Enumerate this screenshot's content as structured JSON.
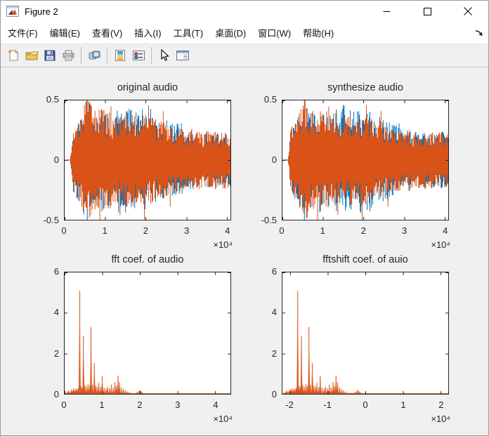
{
  "window": {
    "title": "Figure 2",
    "icon": "matlab-figure-icon",
    "controls": [
      {
        "name": "minimize-button",
        "icon": "minimize-icon"
      },
      {
        "name": "maximize-button",
        "icon": "maximize-icon"
      },
      {
        "name": "close-button",
        "icon": "close-icon"
      }
    ]
  },
  "menu": {
    "items": [
      {
        "label": "文件(F)"
      },
      {
        "label": "编辑(E)"
      },
      {
        "label": "查看(V)"
      },
      {
        "label": "插入(I)"
      },
      {
        "label": "工具(T)"
      },
      {
        "label": "桌面(D)"
      },
      {
        "label": "窗口(W)"
      },
      {
        "label": "帮助(H)"
      }
    ],
    "dock_icon": "dock-figure-arrow-icon"
  },
  "toolbar": {
    "buttons": [
      {
        "icon": "new-figure-icon"
      },
      {
        "icon": "open-file-icon"
      },
      {
        "icon": "save-figure-icon"
      },
      {
        "icon": "print-figure-icon"
      },
      {
        "icon": "link-plot-icon"
      },
      {
        "icon": "insert-colorbar-icon"
      },
      {
        "icon": "insert-legend-icon"
      },
      {
        "icon": "edit-plot-cursor-icon"
      },
      {
        "icon": "property-editor-icon"
      }
    ]
  },
  "colors": {
    "series_blue": "#0072BD",
    "series_orange": "#D95319",
    "axis": "#262626",
    "figure_background": "#f0f0f0",
    "plot_background": "#ffffff"
  },
  "chart_data": [
    {
      "type": "line",
      "title": "original audio",
      "xlim": [
        0,
        4.09
      ],
      "ylim": [
        -0.5,
        0.5
      ],
      "xticks": [
        0,
        1,
        2,
        3,
        4
      ],
      "xtick_labels": [
        "0",
        "1",
        "2",
        "3",
        "4"
      ],
      "yticks": [
        -0.5,
        0,
        0.5
      ],
      "ytick_labels": [
        "-0.5",
        "0",
        "0.5"
      ],
      "x_exponent": "×10⁴",
      "series_colors": [
        "#0072BD",
        "#D95319"
      ],
      "seed": 123456789,
      "envelope": [
        [
          0.0,
          0.004
        ],
        [
          0.13,
          0.005
        ],
        [
          0.16,
          0.06
        ],
        [
          0.2,
          0.24
        ],
        [
          0.28,
          0.3
        ],
        [
          0.38,
          0.34
        ],
        [
          0.48,
          0.44
        ],
        [
          0.56,
          0.5
        ],
        [
          0.64,
          0.45
        ],
        [
          0.72,
          0.41
        ],
        [
          0.82,
          0.38
        ],
        [
          0.92,
          0.42
        ],
        [
          1.02,
          0.36
        ],
        [
          1.12,
          0.39
        ],
        [
          1.22,
          0.33
        ],
        [
          1.32,
          0.37
        ],
        [
          1.42,
          0.32
        ],
        [
          1.52,
          0.38
        ],
        [
          1.62,
          0.34
        ],
        [
          1.72,
          0.36
        ],
        [
          1.82,
          0.31
        ],
        [
          1.92,
          0.37
        ],
        [
          2.02,
          0.34
        ],
        [
          2.12,
          0.36
        ],
        [
          2.22,
          0.31
        ],
        [
          2.32,
          0.28
        ],
        [
          2.42,
          0.32
        ],
        [
          2.52,
          0.28
        ],
        [
          2.62,
          0.26
        ],
        [
          2.72,
          0.24
        ],
        [
          2.82,
          0.27
        ],
        [
          2.92,
          0.23
        ],
        [
          3.02,
          0.21
        ],
        [
          3.12,
          0.25
        ],
        [
          3.22,
          0.21
        ],
        [
          3.32,
          0.24
        ],
        [
          3.42,
          0.2
        ],
        [
          3.52,
          0.23
        ],
        [
          3.62,
          0.21
        ],
        [
          3.72,
          0.23
        ],
        [
          3.82,
          0.2
        ],
        [
          3.92,
          0.23
        ],
        [
          4.09,
          0.21
        ]
      ],
      "neg_spikes": [
        [
          0.86,
          0.52
        ],
        [
          1.36,
          0.46
        ],
        [
          1.96,
          0.5
        ],
        [
          2.6,
          0.39
        ]
      ],
      "pos_spikes": [
        [
          0.55,
          0.51
        ],
        [
          1.14,
          0.45
        ],
        [
          2.06,
          0.46
        ],
        [
          2.43,
          0.41
        ]
      ]
    },
    {
      "type": "line",
      "title": "synthesize audio",
      "xlim": [
        0,
        4.09
      ],
      "ylim": [
        -0.5,
        0.5
      ],
      "xticks": [
        0,
        1,
        2,
        3,
        4
      ],
      "xtick_labels": [
        "0",
        "1",
        "2",
        "3",
        "4"
      ],
      "yticks": [
        -0.5,
        0,
        0.5
      ],
      "ytick_labels": [
        "-0.5",
        "0",
        "0.5"
      ],
      "x_exponent": "×10⁴",
      "series_colors": [
        "#0072BD",
        "#D95319"
      ],
      "seed": 987654321,
      "envelope": [
        [
          0.0,
          0.004
        ],
        [
          0.13,
          0.005
        ],
        [
          0.16,
          0.06
        ],
        [
          0.2,
          0.24
        ],
        [
          0.28,
          0.3
        ],
        [
          0.38,
          0.34
        ],
        [
          0.48,
          0.44
        ],
        [
          0.56,
          0.5
        ],
        [
          0.64,
          0.45
        ],
        [
          0.72,
          0.41
        ],
        [
          0.82,
          0.38
        ],
        [
          0.92,
          0.42
        ],
        [
          1.02,
          0.36
        ],
        [
          1.12,
          0.39
        ],
        [
          1.22,
          0.33
        ],
        [
          1.32,
          0.37
        ],
        [
          1.42,
          0.32
        ],
        [
          1.52,
          0.38
        ],
        [
          1.62,
          0.34
        ],
        [
          1.72,
          0.36
        ],
        [
          1.82,
          0.31
        ],
        [
          1.92,
          0.37
        ],
        [
          2.02,
          0.34
        ],
        [
          2.12,
          0.36
        ],
        [
          2.22,
          0.31
        ],
        [
          2.32,
          0.28
        ],
        [
          2.42,
          0.32
        ],
        [
          2.52,
          0.28
        ],
        [
          2.62,
          0.26
        ],
        [
          2.72,
          0.24
        ],
        [
          2.82,
          0.27
        ],
        [
          2.92,
          0.23
        ],
        [
          3.02,
          0.21
        ],
        [
          3.12,
          0.25
        ],
        [
          3.22,
          0.21
        ],
        [
          3.32,
          0.24
        ],
        [
          3.42,
          0.2
        ],
        [
          3.52,
          0.23
        ],
        [
          3.62,
          0.21
        ],
        [
          3.72,
          0.23
        ],
        [
          3.82,
          0.2
        ],
        [
          3.92,
          0.23
        ],
        [
          4.09,
          0.21
        ]
      ],
      "neg_spikes": [
        [
          0.86,
          0.52
        ],
        [
          1.36,
          0.46
        ],
        [
          1.96,
          0.5
        ],
        [
          2.6,
          0.39
        ]
      ],
      "pos_spikes": [
        [
          0.55,
          0.51
        ],
        [
          1.14,
          0.45
        ],
        [
          2.06,
          0.46
        ],
        [
          2.43,
          0.41
        ]
      ]
    },
    {
      "type": "line",
      "title": "fft coef. of audio",
      "xlim": [
        0,
        4.41
      ],
      "ylim": [
        0,
        6
      ],
      "xticks": [
        0,
        1,
        2,
        3,
        4
      ],
      "xtick_labels": [
        "0",
        "1",
        "2",
        "3",
        "4"
      ],
      "yticks": [
        0,
        2,
        4,
        6
      ],
      "ytick_labels": [
        "0",
        "2",
        "4",
        "6"
      ],
      "x_exponent": "×10⁴",
      "series_colors": [
        "#D95319"
      ],
      "seed": 24681357,
      "noise_range": [
        0,
        2.1
      ],
      "spikes": [
        [
          0.07,
          0.1
        ],
        [
          0.1,
          0.16
        ],
        [
          0.14,
          0.12
        ],
        [
          0.18,
          0.22
        ],
        [
          0.21,
          0.16
        ],
        [
          0.24,
          0.28
        ],
        [
          0.27,
          0.18
        ],
        [
          0.3,
          0.26
        ],
        [
          0.33,
          0.22
        ],
        [
          0.36,
          0.3
        ],
        [
          0.4,
          5.1
        ],
        [
          0.44,
          0.38
        ],
        [
          0.47,
          0.3
        ],
        [
          0.5,
          2.85
        ],
        [
          0.54,
          0.42
        ],
        [
          0.58,
          0.35
        ],
        [
          0.62,
          0.48
        ],
        [
          0.66,
          0.4
        ],
        [
          0.7,
          3.3
        ],
        [
          0.74,
          0.45
        ],
        [
          0.79,
          1.52
        ],
        [
          0.83,
          0.4
        ],
        [
          0.87,
          0.35
        ],
        [
          0.91,
          0.55
        ],
        [
          0.96,
          0.35
        ],
        [
          1.0,
          0.88
        ],
        [
          1.05,
          0.3
        ],
        [
          1.1,
          0.26
        ],
        [
          1.14,
          0.36
        ],
        [
          1.19,
          0.28
        ],
        [
          1.24,
          0.46
        ],
        [
          1.29,
          0.32
        ],
        [
          1.34,
          0.58
        ],
        [
          1.38,
          0.4
        ],
        [
          1.42,
          0.9
        ],
        [
          1.46,
          0.58
        ],
        [
          1.51,
          0.32
        ],
        [
          1.56,
          0.24
        ],
        [
          1.61,
          0.18
        ],
        [
          1.66,
          0.12
        ],
        [
          1.72,
          0.08
        ],
        [
          1.8,
          0.05
        ],
        [
          1.94,
          0.12
        ],
        [
          1.99,
          0.2
        ],
        [
          2.03,
          0.14
        ],
        [
          2.07,
          0.07
        ]
      ]
    },
    {
      "type": "line",
      "title": "fftshift coef. of auio",
      "xlim": [
        -2.205,
        2.205
      ],
      "ylim": [
        0,
        6
      ],
      "xticks": [
        -2,
        -1,
        0,
        1,
        2
      ],
      "xtick_labels": [
        "-2",
        "-1",
        "0",
        "1",
        "2"
      ],
      "yticks": [
        0,
        2,
        4,
        6
      ],
      "ytick_labels": [
        "0",
        "2",
        "4",
        "6"
      ],
      "x_exponent": "×10⁴",
      "series_colors": [
        "#D95319"
      ],
      "seed": 13572468,
      "noise_range": [
        -2.205,
        -0.1
      ],
      "spikes": [
        [
          -2.13,
          0.1
        ],
        [
          -2.1,
          0.16
        ],
        [
          -2.06,
          0.12
        ],
        [
          -2.02,
          0.22
        ],
        [
          -1.99,
          0.16
        ],
        [
          -1.96,
          0.28
        ],
        [
          -1.93,
          0.18
        ],
        [
          -1.9,
          0.26
        ],
        [
          -1.87,
          0.22
        ],
        [
          -1.84,
          0.3
        ],
        [
          -1.8,
          5.1
        ],
        [
          -1.76,
          0.38
        ],
        [
          -1.73,
          0.3
        ],
        [
          -1.7,
          2.85
        ],
        [
          -1.66,
          0.42
        ],
        [
          -1.62,
          0.35
        ],
        [
          -1.58,
          0.48
        ],
        [
          -1.54,
          0.4
        ],
        [
          -1.5,
          3.3
        ],
        [
          -1.46,
          0.45
        ],
        [
          -1.41,
          1.52
        ],
        [
          -1.37,
          0.4
        ],
        [
          -1.33,
          0.35
        ],
        [
          -1.29,
          0.55
        ],
        [
          -1.24,
          0.35
        ],
        [
          -1.2,
          0.88
        ],
        [
          -1.15,
          0.3
        ],
        [
          -1.1,
          0.26
        ],
        [
          -1.06,
          0.36
        ],
        [
          -1.01,
          0.28
        ],
        [
          -0.96,
          0.46
        ],
        [
          -0.91,
          0.32
        ],
        [
          -0.86,
          0.58
        ],
        [
          -0.82,
          0.4
        ],
        [
          -0.78,
          0.9
        ],
        [
          -0.74,
          0.58
        ],
        [
          -0.69,
          0.32
        ],
        [
          -0.64,
          0.24
        ],
        [
          -0.59,
          0.18
        ],
        [
          -0.54,
          0.12
        ],
        [
          -0.48,
          0.08
        ],
        [
          -0.4,
          0.05
        ],
        [
          -0.26,
          0.12
        ],
        [
          -0.21,
          0.2
        ],
        [
          -0.17,
          0.14
        ],
        [
          -0.13,
          0.07
        ]
      ]
    }
  ]
}
